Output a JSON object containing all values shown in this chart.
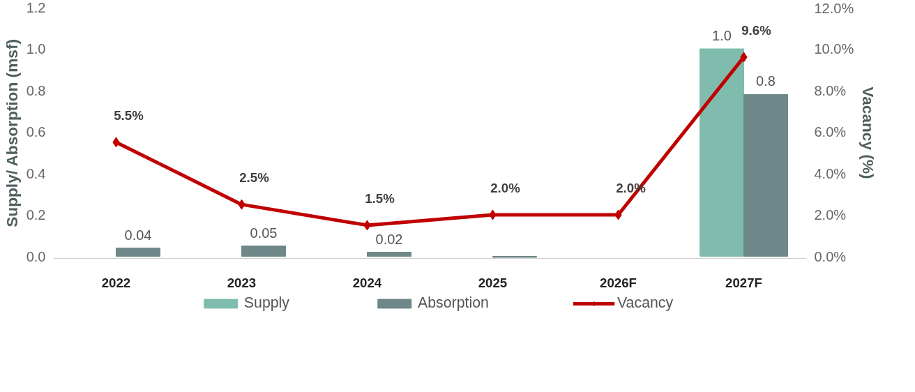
{
  "chart_data": {
    "type": "bar",
    "categories": [
      "2022",
      "2023",
      "2024",
      "2025",
      "2026F",
      "2027F"
    ],
    "ylabel": "Supply/ Absorption (msf)",
    "y2label": "Vacancy (%)",
    "ylim": [
      -0.01,
      1.2
    ],
    "yticks": [
      {
        "value": 0,
        "label": "0.0"
      },
      {
        "value": 0.2,
        "label": "0.2"
      },
      {
        "value": 0.4,
        "label": "0.4"
      },
      {
        "value": 0.6,
        "label": "0.6"
      },
      {
        "value": 0.8,
        "label": "0.8"
      },
      {
        "value": 1.0,
        "label": "1.0"
      },
      {
        "value": 1.2,
        "label": "1.2"
      }
    ],
    "y2lim": [
      -0.1,
      12
    ],
    "y2ticks": [
      {
        "value": 0,
        "label": "0.0%"
      },
      {
        "value": 2,
        "label": "2.0%"
      },
      {
        "value": 4,
        "label": "4.0%"
      },
      {
        "value": 6,
        "label": "6.0%"
      },
      {
        "value": 8,
        "label": "8.0%"
      },
      {
        "value": 10,
        "label": "10.0%"
      },
      {
        "value": 12,
        "label": "12.0%"
      }
    ],
    "series": [
      {
        "name": "Supply",
        "color": "#80bcad",
        "values": [
          null,
          null,
          null,
          null,
          null,
          1.0
        ],
        "value_labels": [
          null,
          null,
          null,
          null,
          null,
          "1.0"
        ]
      },
      {
        "name": "Absorption",
        "color": "#6e8789",
        "values": [
          0.04,
          0.05,
          0.02,
          -0.005,
          null,
          0.78
        ],
        "value_labels": [
          "0.04",
          "0.05",
          "0.02",
          null,
          null,
          "0.8"
        ]
      },
      {
        "name": "Vacancy",
        "type": "line",
        "axis": "y2",
        "color": "#c00000",
        "marker": "diamond",
        "values": [
          5.5,
          2.5,
          1.5,
          2.0,
          2.0,
          9.6
        ],
        "value_labels": [
          "5.5%",
          "2.5%",
          "1.5%",
          "2.0%",
          "2.0%",
          "9.6%"
        ]
      }
    ],
    "grid": false,
    "legend": "bottom"
  }
}
